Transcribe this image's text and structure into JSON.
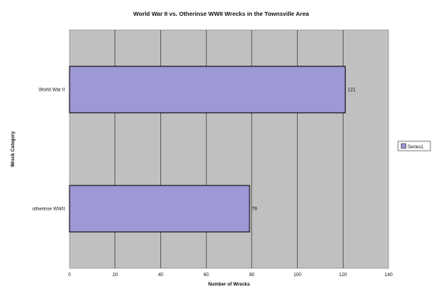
{
  "chart_data": {
    "type": "bar",
    "orientation": "horizontal",
    "title": "World War II vs. Otherinse WWII Wrecks in the Townsville Area",
    "xlabel": "Number of Wrecks",
    "ylabel": "Wreck Category",
    "categories": [
      "World War II",
      "otherinse WWII"
    ],
    "series": [
      {
        "name": "Series1",
        "values": [
          121,
          79
        ]
      }
    ],
    "data_labels": [
      "121",
      "79"
    ],
    "xlim": [
      0,
      140
    ],
    "xticks": [
      0,
      20,
      40,
      60,
      80,
      100,
      120,
      140
    ],
    "xtick_labels": [
      "0",
      "20",
      "40",
      "60",
      "80",
      "100",
      "120",
      "140"
    ],
    "grid": true,
    "legend_position": "right",
    "colors": {
      "bar_fill": "#9d99d6",
      "bar_stroke": "#000000",
      "plot_background": "#c0c0c0",
      "gridline": "#000000",
      "page_background": "#ffffff"
    }
  }
}
